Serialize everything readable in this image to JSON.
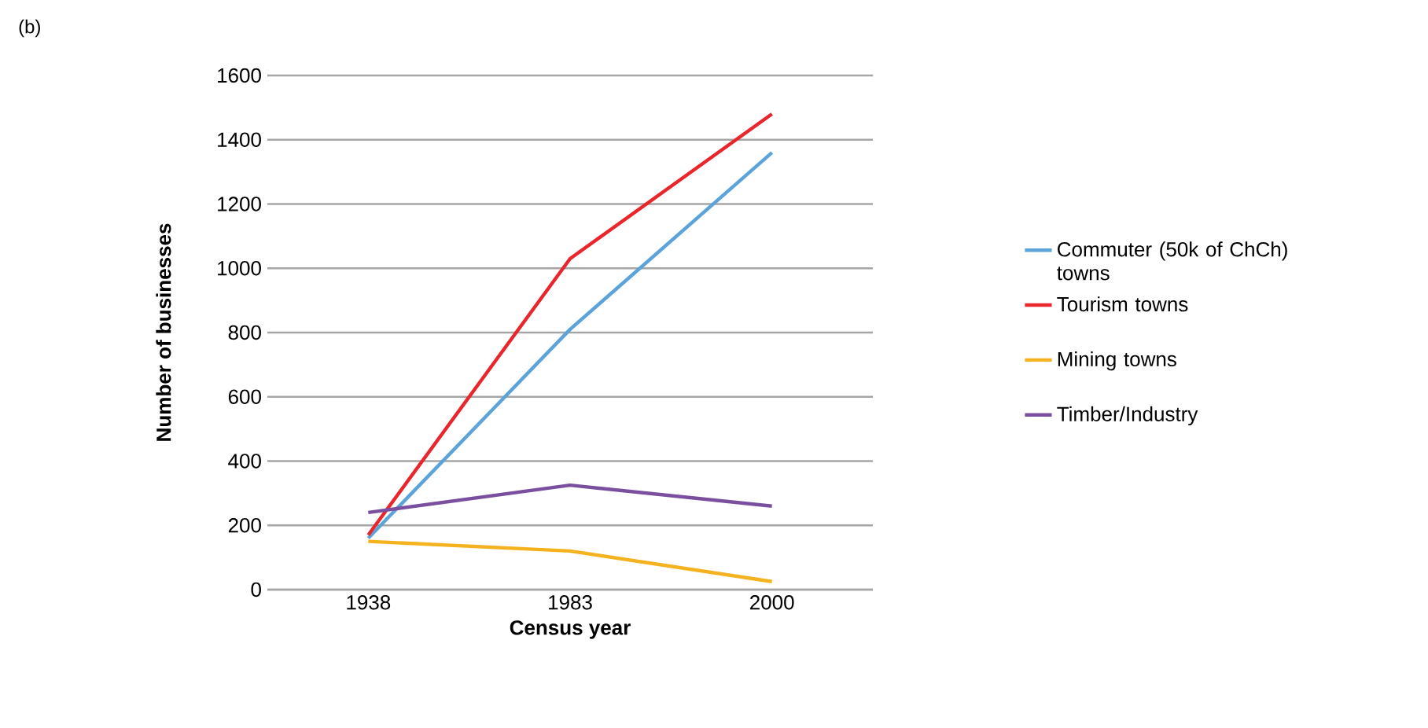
{
  "chart_data": {
    "type": "line",
    "ylabel": "Number of businesses",
    "xlabel": "Census year",
    "annotations": [
      "(b)"
    ],
    "categories": [
      "1938",
      "1983",
      "2000"
    ],
    "series": [
      {
        "name": "Commuter (50k of ChCh) towns",
        "color": "#5ba3d9",
        "values": [
          160,
          810,
          1360
        ]
      },
      {
        "name": "Tourism towns",
        "color": "#e8262b",
        "values": [
          170,
          1030,
          1480
        ]
      },
      {
        "name": "Mining towns",
        "color": "#f5b21f",
        "values": [
          150,
          120,
          25
        ]
      },
      {
        "name": "Timber/Industry",
        "color": "#7b4fa0",
        "values": [
          240,
          325,
          260
        ]
      }
    ],
    "ylim": [
      0,
      1600
    ],
    "yticks": [
      0,
      200,
      400,
      600,
      800,
      1000,
      1200,
      1400,
      1600
    ],
    "grid": "y",
    "legend": "right",
    "marker": "none",
    "line_style": "solid"
  }
}
